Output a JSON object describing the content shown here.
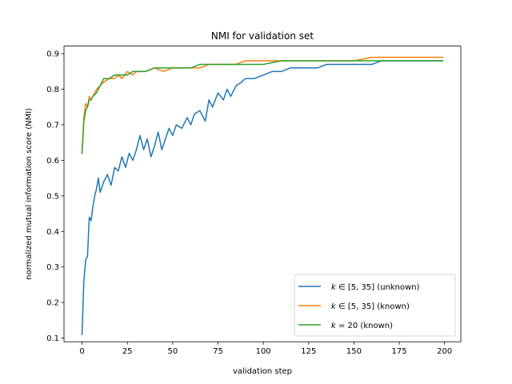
{
  "chart_data": {
    "type": "line",
    "title": "NMI for validation set",
    "xlabel": "validation step",
    "ylabel": "normalized mutual information score (NMI)",
    "xlim": [
      -9.95,
      208.95
    ],
    "ylim": [
      0.0895,
      0.9215
    ],
    "xticks": [
      0,
      25,
      50,
      75,
      100,
      125,
      150,
      175,
      200
    ],
    "yticks": [
      0.1,
      0.2,
      0.3,
      0.4,
      0.5,
      0.6,
      0.7,
      0.8,
      0.9
    ],
    "xtick_labels": [
      "0",
      "25",
      "50",
      "75",
      "100",
      "125",
      "150",
      "175",
      "200"
    ],
    "ytick_labels": [
      "0.1",
      "0.2",
      "0.3",
      "0.4",
      "0.5",
      "0.6",
      "0.7",
      "0.8",
      "0.9"
    ],
    "grid": false,
    "legend_position": "lower-right",
    "series": [
      {
        "name": "k ∈ [5, 35] (unknown)",
        "legend_label": {
          "pre": "k",
          "mid": " ∈ [5, 35] (unknown)"
        },
        "color": "#1f77b4",
        "x": [
          0,
          1,
          2,
          3,
          4,
          5,
          6,
          7,
          8,
          9,
          10,
          12,
          14,
          16,
          18,
          20,
          22,
          24,
          26,
          28,
          30,
          32,
          34,
          36,
          38,
          40,
          42,
          44,
          46,
          48,
          50,
          52,
          55,
          58,
          60,
          62,
          65,
          68,
          70,
          72,
          75,
          78,
          80,
          82,
          85,
          88,
          90,
          95,
          100,
          105,
          110,
          115,
          120,
          125,
          130,
          135,
          140,
          145,
          150,
          155,
          160,
          165,
          170,
          175,
          180,
          185,
          190,
          195,
          199
        ],
        "values": [
          0.11,
          0.26,
          0.32,
          0.33,
          0.44,
          0.43,
          0.47,
          0.5,
          0.52,
          0.55,
          0.51,
          0.54,
          0.56,
          0.53,
          0.58,
          0.57,
          0.61,
          0.58,
          0.62,
          0.6,
          0.63,
          0.67,
          0.63,
          0.66,
          0.61,
          0.64,
          0.68,
          0.63,
          0.66,
          0.69,
          0.67,
          0.7,
          0.69,
          0.72,
          0.7,
          0.73,
          0.74,
          0.71,
          0.77,
          0.75,
          0.79,
          0.77,
          0.8,
          0.78,
          0.81,
          0.82,
          0.83,
          0.83,
          0.84,
          0.85,
          0.85,
          0.86,
          0.86,
          0.86,
          0.86,
          0.87,
          0.87,
          0.87,
          0.87,
          0.87,
          0.87,
          0.88,
          0.88,
          0.88,
          0.88,
          0.88,
          0.88,
          0.88,
          0.88
        ]
      },
      {
        "name": "k ∈ [5, 35] (known)",
        "legend_label": {
          "pre": "k",
          "mid": " ∈ [5, 35] (known)"
        },
        "color": "#ff7f0e",
        "x": [
          0,
          1,
          2,
          3,
          4,
          5,
          6,
          8,
          10,
          12,
          15,
          18,
          20,
          22,
          25,
          28,
          30,
          35,
          40,
          45,
          50,
          55,
          60,
          65,
          70,
          75,
          80,
          85,
          90,
          95,
          100,
          110,
          120,
          130,
          140,
          150,
          160,
          170,
          180,
          190,
          199
        ],
        "values": [
          0.62,
          0.72,
          0.76,
          0.75,
          0.78,
          0.77,
          0.78,
          0.8,
          0.81,
          0.82,
          0.83,
          0.83,
          0.84,
          0.83,
          0.85,
          0.84,
          0.85,
          0.85,
          0.86,
          0.85,
          0.86,
          0.86,
          0.86,
          0.86,
          0.87,
          0.87,
          0.87,
          0.87,
          0.88,
          0.88,
          0.88,
          0.88,
          0.88,
          0.88,
          0.88,
          0.88,
          0.89,
          0.89,
          0.89,
          0.89,
          0.89
        ]
      },
      {
        "name": "k = 20 (known)",
        "legend_label": {
          "pre": "k",
          "mid": " = 20 (known)"
        },
        "color": "#2ca02c",
        "x": [
          0,
          1,
          2,
          3,
          4,
          5,
          6,
          8,
          10,
          12,
          15,
          18,
          20,
          22,
          25,
          28,
          30,
          35,
          40,
          45,
          50,
          55,
          60,
          65,
          70,
          75,
          80,
          85,
          90,
          95,
          100,
          110,
          120,
          130,
          140,
          150,
          160,
          170,
          180,
          190,
          199
        ],
        "values": [
          0.62,
          0.71,
          0.74,
          0.75,
          0.77,
          0.77,
          0.78,
          0.79,
          0.81,
          0.83,
          0.83,
          0.84,
          0.84,
          0.84,
          0.84,
          0.85,
          0.85,
          0.85,
          0.86,
          0.86,
          0.86,
          0.86,
          0.86,
          0.87,
          0.87,
          0.87,
          0.87,
          0.87,
          0.87,
          0.87,
          0.87,
          0.88,
          0.88,
          0.88,
          0.88,
          0.88,
          0.88,
          0.88,
          0.88,
          0.88,
          0.88
        ]
      }
    ]
  }
}
